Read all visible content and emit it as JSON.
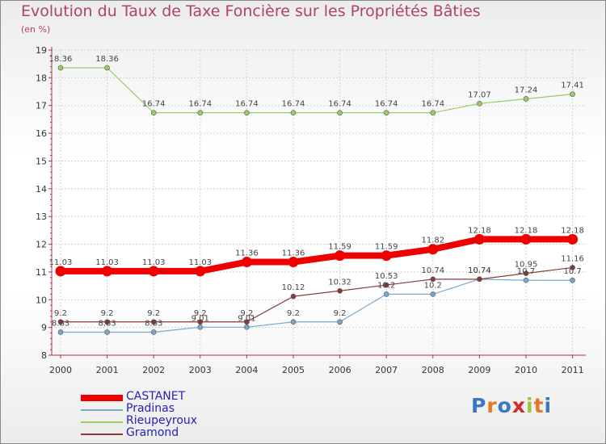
{
  "title": "Evolution du Taux de Taxe Foncière sur les Propriétés Bâties",
  "subtitle": "(en %)",
  "logo": {
    "text": "Proxiti"
  },
  "chart_data": {
    "type": "line",
    "x": [
      "2000",
      "2001",
      "2002",
      "2003",
      "2004",
      "2005",
      "2006",
      "2007",
      "2008",
      "2009",
      "2010",
      "2011"
    ],
    "ylim": [
      8,
      19
    ],
    "yticks": [
      "8",
      "9",
      "10",
      "11",
      "12",
      "13",
      "14",
      "15",
      "16",
      "17",
      "18",
      "19"
    ],
    "grid": true,
    "legend_position": "bottom-left",
    "series": [
      {
        "name": "CASTANET",
        "color": "#ee0000",
        "values": [
          11.03,
          11.03,
          11.03,
          11.03,
          11.36,
          11.36,
          11.59,
          11.59,
          11.82,
          12.18,
          12.18,
          12.18
        ],
        "labels": [
          "11.03",
          "11.03",
          "11.03",
          "11.03",
          "11.36",
          "11.36",
          "11.59",
          "11.59",
          "11.82",
          "12.18",
          "12.18",
          "12.18"
        ]
      },
      {
        "name": "Pradinas",
        "color": "#7aa8cc",
        "values": [
          8.83,
          8.83,
          8.83,
          9.01,
          9.01,
          9.2,
          9.2,
          10.2,
          10.2,
          10.74,
          10.7,
          10.7
        ],
        "labels": [
          "8.83",
          "8.83",
          "8.83",
          "9.01",
          "9.01",
          "9.2",
          "9.2",
          "10.2",
          "10.2",
          "10.74",
          "10.7",
          "10.7"
        ]
      },
      {
        "name": "Rieupeyroux",
        "color": "#9acd60",
        "values": [
          18.36,
          18.36,
          16.74,
          16.74,
          16.74,
          16.74,
          16.74,
          16.74,
          16.74,
          17.07,
          17.24,
          17.41
        ],
        "labels": [
          "18.36",
          "18.36",
          "16.74",
          "16.74",
          "16.74",
          "16.74",
          "16.74",
          "16.74",
          "16.74",
          "17.07",
          "17.24",
          "17.41"
        ]
      },
      {
        "name": "Gramond",
        "color": "#8b3a3a",
        "values": [
          9.2,
          9.2,
          9.2,
          9.2,
          9.2,
          10.12,
          10.32,
          10.53,
          10.74,
          10.74,
          10.95,
          11.16
        ],
        "labels": [
          "9.2",
          "9.2",
          "9.2",
          "9.2",
          "9.2",
          "10.12",
          "10.32",
          "10.53",
          "10.74",
          "10.74",
          "10.95",
          "11.16"
        ]
      }
    ]
  }
}
